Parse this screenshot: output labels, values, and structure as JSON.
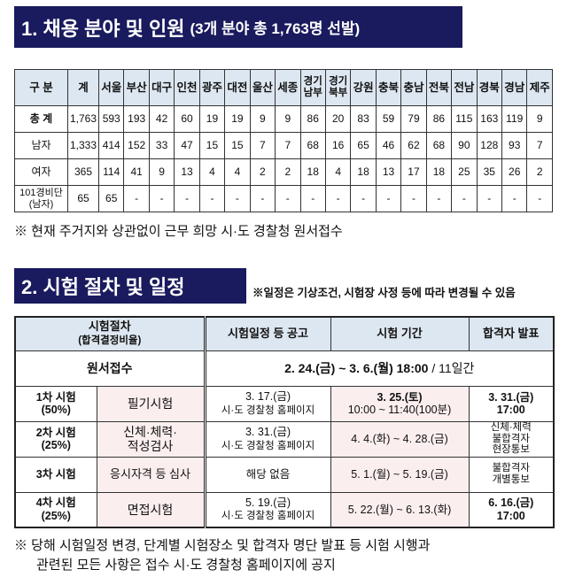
{
  "section1": {
    "title": "1. 채용 분야 및 인원",
    "subtitle": "(3개 분야 총 1,763명 선발)"
  },
  "table1": {
    "headers": [
      "구 분",
      "계",
      "서울",
      "부산",
      "대구",
      "인천",
      "광주",
      "대전",
      "울산",
      "세종",
      "경기남부",
      "경기북부",
      "강원",
      "충북",
      "충남",
      "전북",
      "전남",
      "경북",
      "경남",
      "제주"
    ],
    "rows": [
      [
        "총 계",
        "1,763",
        "593",
        "193",
        "42",
        "60",
        "19",
        "19",
        "9",
        "9",
        "86",
        "20",
        "83",
        "59",
        "79",
        "86",
        "115",
        "163",
        "119",
        "9"
      ],
      [
        "남자",
        "1,333",
        "414",
        "152",
        "33",
        "47",
        "15",
        "15",
        "7",
        "7",
        "68",
        "16",
        "65",
        "46",
        "62",
        "68",
        "90",
        "128",
        "93",
        "7"
      ],
      [
        "여자",
        "365",
        "114",
        "41",
        "9",
        "13",
        "4",
        "4",
        "2",
        "2",
        "18",
        "4",
        "18",
        "13",
        "17",
        "18",
        "25",
        "35",
        "26",
        "2"
      ],
      [
        "101경비단(남자)",
        "65",
        "65",
        "-",
        "-",
        "-",
        "-",
        "-",
        "-",
        "-",
        "-",
        "-",
        "-",
        "-",
        "-",
        "-",
        "-",
        "-",
        "-",
        "-"
      ]
    ]
  },
  "note1": "※ 현재 주거지와 상관없이 근무 희망 시·도 경찰청 원서접수",
  "section2": {
    "title": "2. 시험 절차 및 일정",
    "note": "※일정은 기상조건, 시험장 사정 등에 따라 변경될 수 있음"
  },
  "table2": {
    "headers": {
      "procedure": "시험절차",
      "ratio": "(합격결정비율)",
      "notice": "시험일정 등 공고",
      "period": "시험 기간",
      "result": "합격자 발표"
    },
    "application": {
      "label": "원서접수",
      "period": "2. 24.(금) ~ 3. 6.(월) 18:00",
      "duration": "/ 11일간"
    },
    "rows": [
      {
        "stage": "1차 시험",
        "ratio": "(50%)",
        "name": "필기시험",
        "notice1": "3. 17.(금)",
        "notice2": "시·도 경찰청 홈페이지",
        "period1": "3. 25.(토)",
        "period2": "10:00 ~ 11:40(100분)",
        "result1": "3. 31.(금)",
        "result2": "17:00"
      },
      {
        "stage": "2차 시험",
        "ratio": "(25%)",
        "name": "신체·체력·",
        "name2": "적성검사",
        "notice1": "3. 31.(금)",
        "notice2": "시·도 경찰청 홈페이지",
        "period1": "4. 4.(화) ~ 4. 28.(금)",
        "result1": "신체·체력",
        "result2": "불합격자",
        "result3": "현장통보"
      },
      {
        "stage": "3차 시험",
        "name": "응시자격 등 심사",
        "notice1": "해당 없음",
        "period1": "5. 1.(월) ~ 5. 19.(금)",
        "result1": "불합격자",
        "result2": "개별통보"
      },
      {
        "stage": "4차 시험",
        "ratio": "(25%)",
        "name": "면접시험",
        "notice1": "5. 19.(금)",
        "notice2": "시·도 경찰청 홈페이지",
        "period1": "5. 22.(월) ~ 6. 13.(화)",
        "result1": "6. 16.(금)",
        "result2": "17:00"
      }
    ]
  },
  "footnote": {
    "line1": "※ 당해 시험일정 변경, 단계별 시험장소 및 합격자 명단 발표 등 시험 시행과",
    "line2": "관련된 모든 사항은 접수 시·도 경찰청 홈페이지에 공지"
  }
}
